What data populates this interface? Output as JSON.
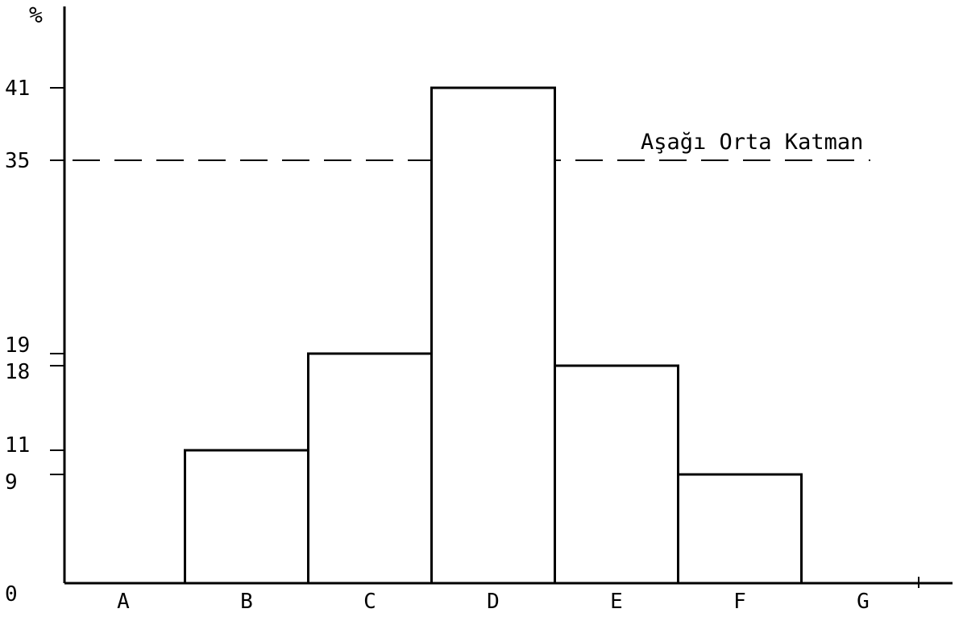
{
  "chart_data": {
    "type": "bar",
    "ylabel": "%",
    "categories": [
      "A",
      "B",
      "C",
      "D",
      "E",
      "F",
      "G"
    ],
    "values": [
      0,
      11,
      19,
      41,
      18,
      9,
      0
    ],
    "yticks": [
      "0",
      "9",
      "11",
      "18",
      "19",
      "35",
      "41"
    ],
    "ylim": [
      0,
      45
    ],
    "grid": false,
    "reference_lines": [
      {
        "y": 35,
        "label": "Aşağı Orta Katman",
        "style": "dashed"
      }
    ],
    "colors": {
      "bar_fill": "#ffffff",
      "bar_stroke": "#000000",
      "axis": "#000000"
    }
  }
}
